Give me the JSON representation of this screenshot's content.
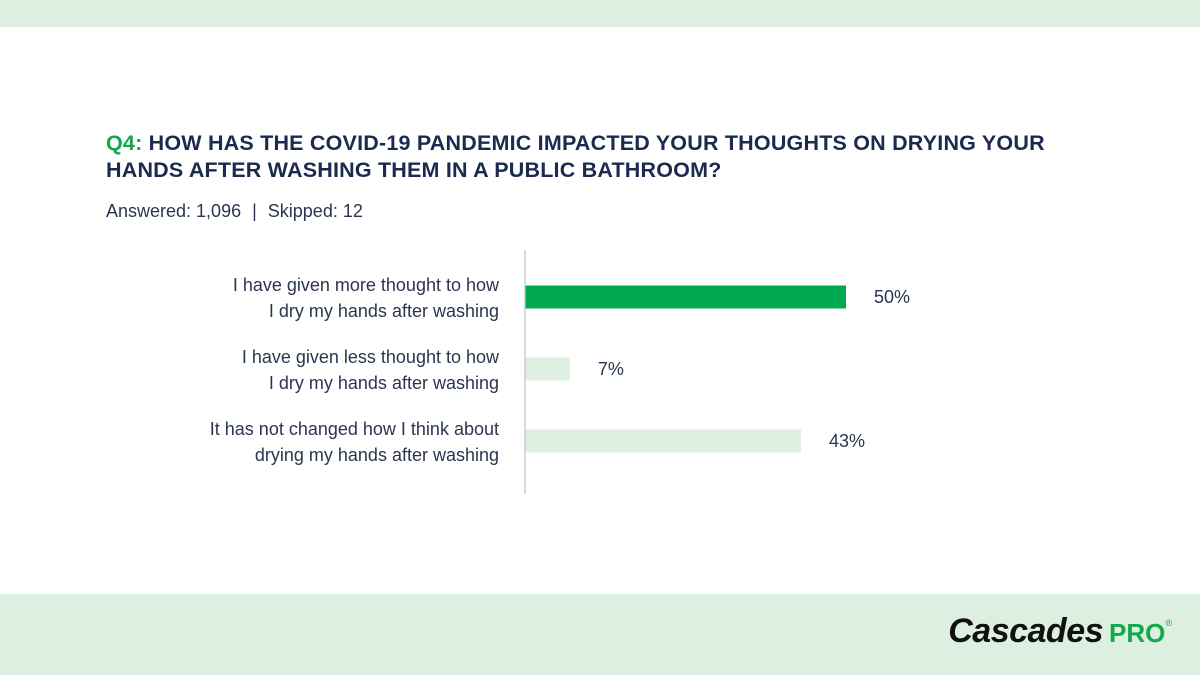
{
  "question": {
    "number": "Q4:",
    "line1": "HOW HAS THE COVID-19 PANDEMIC IMPACTED YOUR THOUGHTS ON DRYING YOUR",
    "line2": "HANDS AFTER WASHING THEM IN A PUBLIC BATHROOM?"
  },
  "meta": {
    "answered": "Answered: 1,096",
    "separator": "|",
    "skipped": "Skipped: 12"
  },
  "logo": {
    "brand": "Cascades",
    "suffix": "PRO",
    "registered": "®"
  },
  "colors": {
    "highlight": "#00a94f",
    "muted": "#dcefe1",
    "title": "#1b2a4e",
    "accent": "#12a84b",
    "band": "#dcefe1"
  },
  "chart_data": {
    "type": "bar",
    "orientation": "horizontal",
    "categories": [
      [
        "I have given more thought to how",
        "I dry my hands after washing"
      ],
      [
        "I have given less thought to how",
        "I dry my hands after washing"
      ],
      [
        "It has not changed how I think about",
        "drying my hands after washing"
      ]
    ],
    "values": [
      50,
      7,
      43
    ],
    "value_labels": [
      "50%",
      "7%",
      "43%"
    ],
    "highlight": [
      true,
      false,
      false
    ],
    "unit": "%",
    "xlim": [
      0,
      62
    ],
    "grid": false,
    "legend": "none"
  }
}
